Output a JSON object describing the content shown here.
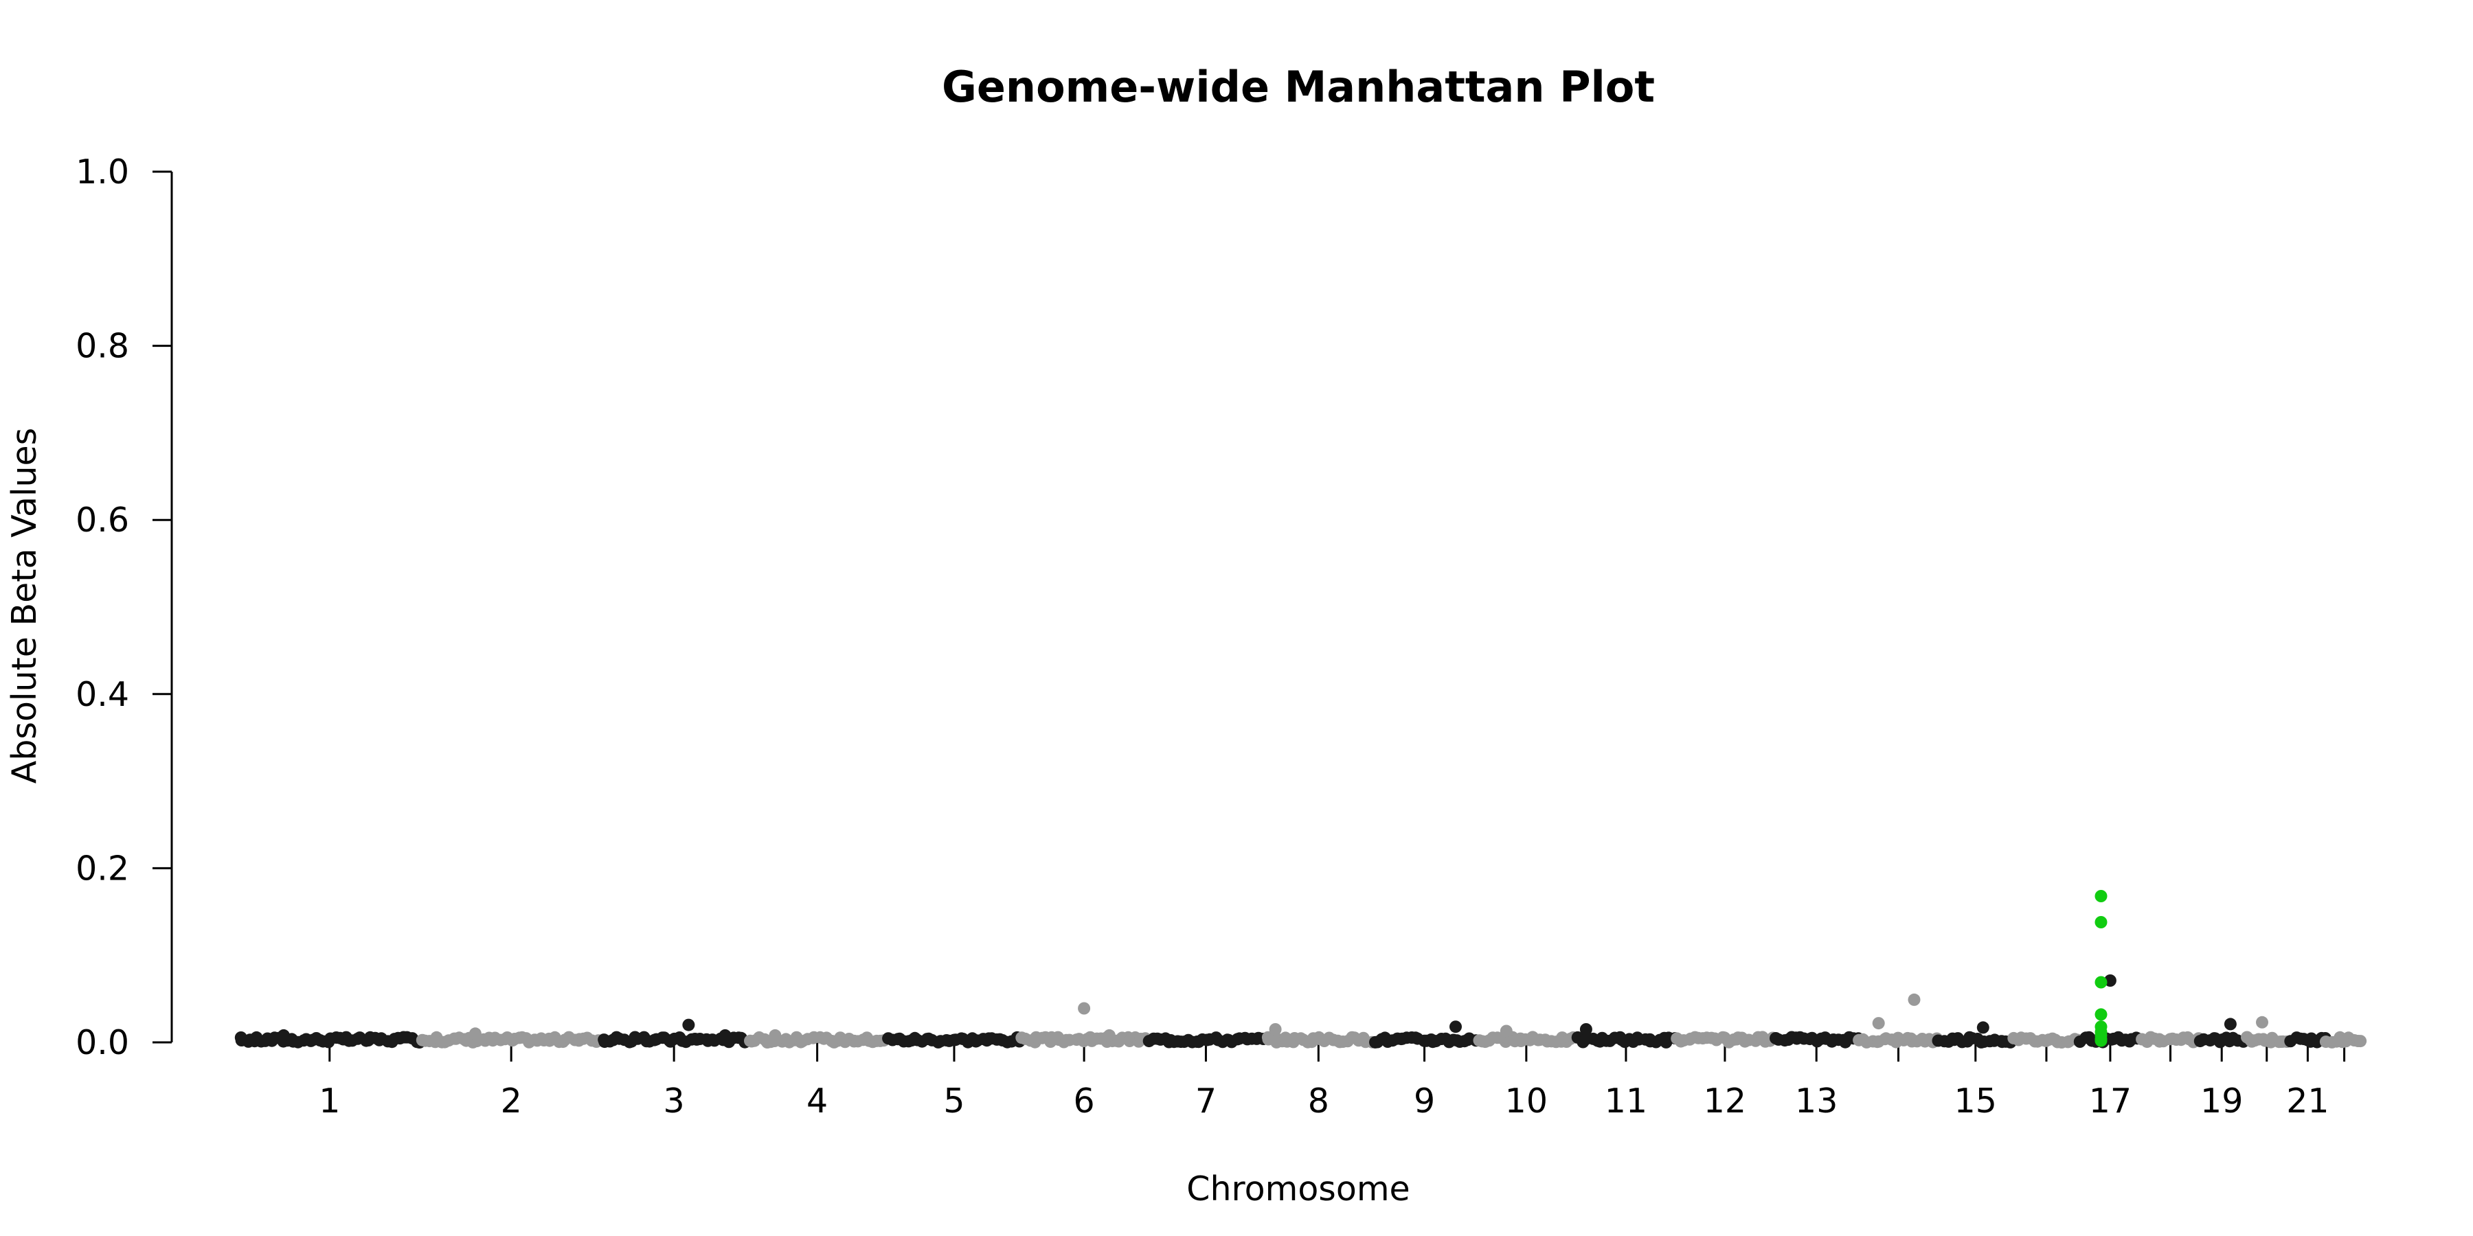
{
  "chart_data": {
    "type": "scatter",
    "title": "Genome-wide Manhattan Plot",
    "xlabel": "Chromosome",
    "ylabel": "Absolute Beta Values",
    "ylim": [
      0,
      1.0
    ],
    "y_ticks": [
      "0.0",
      "0.2",
      "0.4",
      "0.6",
      "0.8",
      "1.0"
    ],
    "x_tick_labels": [
      "1",
      "2",
      "3",
      "4",
      "5",
      "6",
      "7",
      "8",
      "9",
      "10",
      "11",
      "12",
      "13",
      "15",
      "17",
      "19",
      "21"
    ],
    "chromosomes": [
      "1",
      "2",
      "3",
      "4",
      "5",
      "6",
      "7",
      "8",
      "9",
      "10",
      "11",
      "12",
      "13",
      "14",
      "15",
      "16",
      "17",
      "18",
      "19",
      "20",
      "21",
      "22"
    ],
    "grid": false,
    "legend": "none",
    "colors": {
      "odd_chromosome": "#1a1a1a",
      "even_chromosome": "#999999",
      "highlight": "#11cc11"
    },
    "peaks": [
      {
        "chromosome": "1",
        "position": 0.25,
        "value": 0.008
      },
      {
        "chromosome": "2",
        "position": 0.3,
        "value": 0.01
      },
      {
        "chromosome": "3",
        "position": 0.6,
        "value": 0.02
      },
      {
        "chromosome": "3",
        "position": 0.85,
        "value": 0.008
      },
      {
        "chromosome": "4",
        "position": 0.2,
        "value": 0.008
      },
      {
        "chromosome": "6",
        "position": 0.5,
        "value": 0.039
      },
      {
        "chromosome": "6",
        "position": 0.7,
        "value": 0.008
      },
      {
        "chromosome": "8",
        "position": 0.1,
        "value": 0.015
      },
      {
        "chromosome": "9",
        "position": 0.8,
        "value": 0.018
      },
      {
        "chromosome": "10",
        "position": 0.3,
        "value": 0.013
      },
      {
        "chromosome": "11",
        "position": 0.1,
        "value": 0.015
      },
      {
        "chromosome": "14",
        "position": 0.25,
        "value": 0.022
      },
      {
        "chromosome": "14",
        "position": 0.7,
        "value": 0.049
      },
      {
        "chromosome": "15",
        "position": 0.6,
        "value": 0.017
      },
      {
        "chromosome": "17",
        "position": 0.5,
        "value": 0.071
      },
      {
        "chromosome": "19",
        "position": 0.7,
        "value": 0.021
      },
      {
        "chromosome": "20",
        "position": 0.4,
        "value": 0.023
      }
    ],
    "highlight_points": {
      "chromosome": "17",
      "values": [
        0.168,
        0.138,
        0.069,
        0.032,
        0.018,
        0.012,
        0.008,
        0.004,
        0.002
      ]
    },
    "baseline_max_value": 0.006
  }
}
